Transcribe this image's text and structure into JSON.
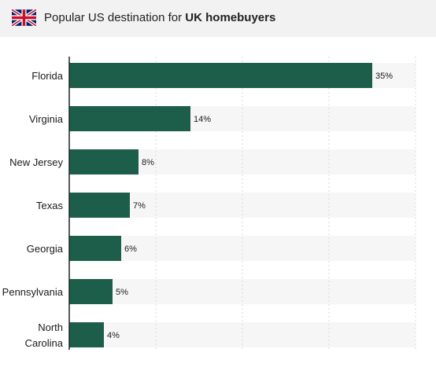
{
  "header": {
    "title_prefix": "Popular US destination for ",
    "title_bold": "UK homebuyers",
    "flag_icon": "uk-flag-icon"
  },
  "chart_data": {
    "type": "bar",
    "orientation": "horizontal",
    "title": "Popular US destination for UK homebuyers",
    "categories": [
      "Florida",
      "Virginia",
      "New Jersey",
      "Texas",
      "Georgia",
      "Pennsylvania",
      "North Carolina"
    ],
    "category_lines": [
      [
        "Florida"
      ],
      [
        "Virginia"
      ],
      [
        "New Jersey"
      ],
      [
        "Texas"
      ],
      [
        "Georgia"
      ],
      [
        "Pennsylvania"
      ],
      [
        "North",
        "Carolina"
      ]
    ],
    "values": [
      35,
      14,
      8,
      7,
      6,
      5,
      4
    ],
    "value_labels": [
      "35%",
      "14%",
      "8%",
      "7%",
      "6%",
      "5%",
      "4%"
    ],
    "unit": "%",
    "xlim": [
      0,
      40
    ],
    "grid": true,
    "colors": {
      "bar": "#1d5e4a",
      "track": "#f6f6f6",
      "grid": "#d9d9d9",
      "axis": "#222222"
    }
  }
}
